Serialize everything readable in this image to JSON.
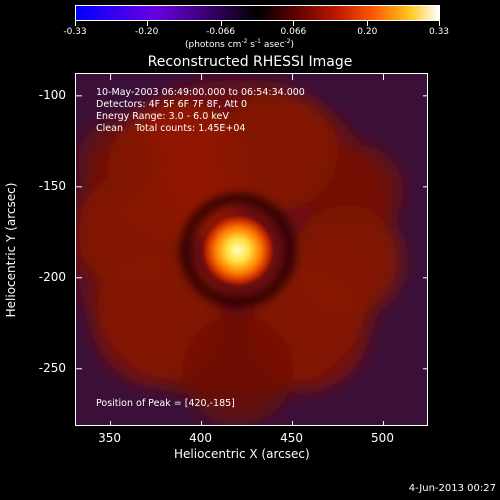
{
  "colorbar": {
    "tick_labels": [
      "-0.33",
      "-0.20",
      "-0.066",
      "0.066",
      "0.20",
      "0.33"
    ],
    "tick_values": [
      -0.33,
      -0.2,
      -0.066,
      0.066,
      0.2,
      0.33
    ],
    "range": [
      -0.33,
      0.33
    ],
    "unit_label": "(photons cm",
    "unit_exp1": "-2",
    "unit_mid": " s",
    "unit_exp2": "-1",
    "unit_mid2": " asec",
    "unit_exp3": "-2",
    "unit_end": ")",
    "colors": [
      "#0000ff",
      "#7a00ff",
      "#200080",
      "#000000",
      "#800000",
      "#ff4000",
      "#ffc000",
      "#ffffff"
    ]
  },
  "plot": {
    "title": "Reconstructed RHESSI Image",
    "info_lines": [
      "10-May-2003 06:49:00.000 to 06:54:34.000",
      "Detectors: 4F 5F 6F 7F 8F, Att 0",
      "Energy Range: 3.0 - 6.0 keV",
      "Clean    Total counts: 1.45E+04"
    ],
    "peak_text": "Position of Peak = [420,-185]",
    "xlabel": "Heliocentric X (arcsec)",
    "ylabel": "Heliocentric Y (arcsec)",
    "xticks": [
      "350",
      "400",
      "450",
      "500"
    ],
    "xtick_values": [
      350,
      400,
      450,
      500
    ],
    "yticks": [
      "-100",
      "-150",
      "-200",
      "-250"
    ],
    "ytick_values": [
      -100,
      -150,
      -200,
      -250
    ],
    "xlim": [
      331,
      525
    ],
    "ylim": [
      -282,
      -88
    ],
    "peak": [
      420,
      -185
    ],
    "peak_color": "#ffff80",
    "halo_color": "#8a1500",
    "background_color": "#3a1038"
  },
  "footer": {
    "date": "4-Jun-2013 00:27"
  }
}
